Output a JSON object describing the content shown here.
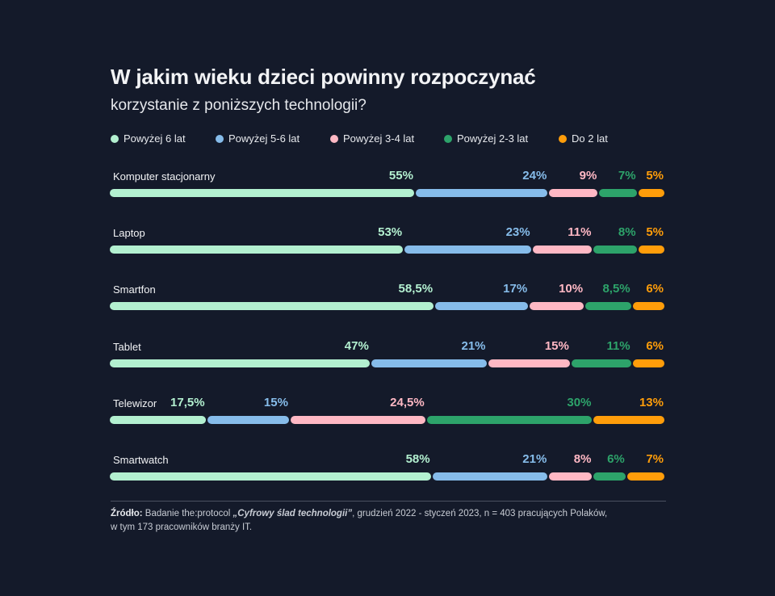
{
  "chart_data": {
    "type": "bar",
    "stacked": true,
    "orientation": "horizontal",
    "title": "W jakim wieku dzieci powinny rozpoczynać",
    "subtitle": "korzystanie z poniższych technologii?",
    "categories": [
      "Komputer stacjonarny",
      "Laptop",
      "Smartfon",
      "Tablet",
      "Telewizor",
      "Smartwatch"
    ],
    "series": [
      {
        "name": "Powyżej 6 lat",
        "color": "#b3f0d0",
        "values": [
          55,
          53,
          58.5,
          47,
          17.5,
          58
        ],
        "labels": [
          "55%",
          "53%",
          "58,5%",
          "47%",
          "17,5%",
          "58%"
        ]
      },
      {
        "name": "Powyżej 5-6 lat",
        "color": "#86bcea",
        "values": [
          24,
          23,
          17,
          21,
          15,
          21
        ],
        "labels": [
          "24%",
          "23%",
          "17%",
          "21%",
          "15%",
          "21%"
        ]
      },
      {
        "name": "Powyżej 3-4 lat",
        "color": "#ffb8c4",
        "values": [
          9,
          11,
          10,
          15,
          24.5,
          8
        ],
        "labels": [
          "9%",
          "11%",
          "10%",
          "15%",
          "24,5%",
          "8%"
        ]
      },
      {
        "name": "Powyżej 2-3 lat",
        "color": "#2da36a",
        "values": [
          7,
          8,
          8.5,
          11,
          30,
          6
        ],
        "labels": [
          "7%",
          "8%",
          "8,5%",
          "11%",
          "30%",
          "6%"
        ]
      },
      {
        "name": "Do 2 lat",
        "color": "#ff9d0a",
        "values": [
          5,
          5,
          6,
          6,
          13,
          7
        ],
        "labels": [
          "5%",
          "5%",
          "6%",
          "6%",
          "13%",
          "7%"
        ]
      }
    ],
    "xlim": [
      0,
      100
    ],
    "legend": "top-left",
    "grid": false
  },
  "source": {
    "prefix": "Źródło:",
    "text1": " Badanie the:protocol ",
    "italic": "„Cyfrowy ślad technologii”",
    "text2": ", grudzień 2022 - styczeń 2023, n = 403 pracujących Polaków,",
    "line2": "w tym 173 pracowników branży IT."
  }
}
